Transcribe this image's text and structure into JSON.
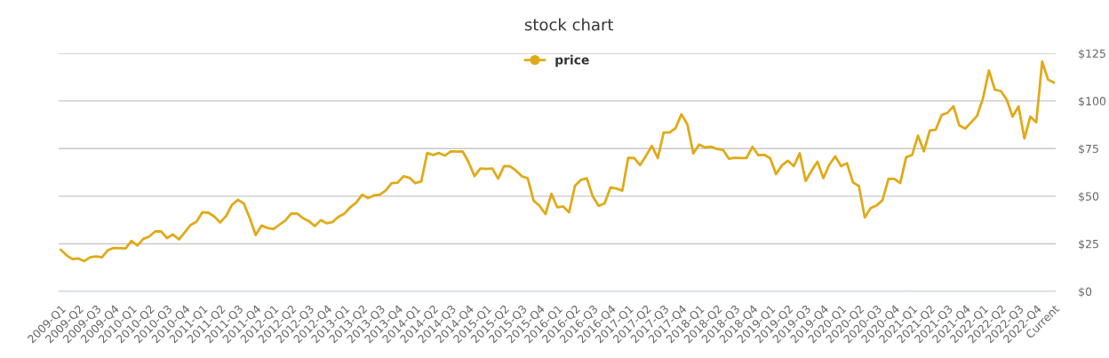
{
  "chart_data": {
    "type": "line",
    "title": "stock chart",
    "categories": [
      "2009-Q1",
      null,
      null,
      "2009-Q2",
      null,
      null,
      "2009-Q3",
      null,
      null,
      "2009-Q4",
      null,
      null,
      "2010-Q1",
      null,
      null,
      "2010-Q2",
      null,
      null,
      "2010-Q3",
      null,
      null,
      "2010-Q4",
      null,
      null,
      "2011-Q1",
      null,
      null,
      "2011-Q2",
      null,
      null,
      "2011-Q3",
      null,
      null,
      "2011-Q4",
      null,
      null,
      "2012-Q1",
      null,
      null,
      "2012-Q2",
      null,
      null,
      "2012-Q3",
      null,
      null,
      "2012-Q4",
      null,
      null,
      "2013-Q1",
      null,
      null,
      "2013-Q2",
      null,
      null,
      "2013-Q3",
      null,
      null,
      "2013-Q4",
      null,
      null,
      "2014-Q1",
      null,
      null,
      "2014-Q2",
      null,
      null,
      "2014-Q3",
      null,
      null,
      "2014-Q4",
      null,
      null,
      "2015-Q1",
      null,
      null,
      "2015-Q2",
      null,
      null,
      "2015-Q3",
      null,
      null,
      "2015-Q4",
      null,
      null,
      "2016-Q1",
      null,
      null,
      "2016-Q2",
      null,
      null,
      "2016-Q3",
      null,
      null,
      "2016-Q4",
      null,
      null,
      "2017-Q1",
      null,
      null,
      "2017-Q2",
      null,
      null,
      "2017-Q3",
      null,
      null,
      "2017-Q4",
      null,
      null,
      "2018-Q1",
      null,
      null,
      "2018-Q2",
      null,
      null,
      "2018-Q3",
      null,
      null,
      "2018-Q4",
      null,
      null,
      "2019-Q1",
      null,
      null,
      "2019-Q2",
      null,
      null,
      "2019-Q3",
      null,
      null,
      "2019-Q4",
      null,
      null,
      "2020-Q1",
      null,
      null,
      "2020-Q2",
      null,
      null,
      "2020-Q3",
      null,
      null,
      "2020-Q4",
      null,
      null,
      "2021-Q1",
      null,
      null,
      "2021-Q2",
      null,
      null,
      "2021-Q3",
      null,
      null,
      "2021-Q4",
      null,
      null,
      "2022-Q1",
      null,
      null,
      "2022-Q2",
      null,
      null,
      "2022-Q3",
      null,
      null,
      "2022-Q4",
      null,
      null,
      "Current"
    ],
    "series": [
      {
        "name": "price",
        "color": "#e0aa16",
        "values": [
          22.0,
          19.0,
          17.0,
          17.3,
          15.9,
          17.9,
          18.4,
          17.9,
          21.7,
          22.8,
          22.7,
          22.6,
          26.5,
          24.1,
          27.6,
          28.8,
          31.5,
          31.5,
          28.0,
          29.9,
          27.3,
          31.0,
          34.9,
          36.6,
          41.6,
          41.3,
          39.3,
          36.2,
          39.6,
          45.5,
          48.1,
          46.1,
          38.5,
          29.6,
          34.6,
          33.3,
          32.7,
          35.0,
          37.2,
          40.9,
          40.9,
          38.5,
          36.9,
          34.3,
          37.4,
          35.8,
          36.4,
          39.2,
          40.8,
          44.2,
          46.6,
          50.8,
          49.0,
          50.4,
          50.8,
          53.0,
          56.9,
          57.1,
          60.5,
          59.7,
          56.8,
          57.8,
          72.7,
          71.6,
          72.7,
          71.3,
          73.5,
          73.4,
          73.5,
          67.9,
          60.5,
          64.6,
          64.3,
          64.6,
          59.2,
          65.8,
          65.7,
          63.5,
          60.5,
          59.4,
          47.7,
          44.9,
          40.6,
          51.3,
          44.2,
          44.6,
          41.5,
          55.5,
          58.5,
          59.4,
          49.9,
          44.9,
          46.2,
          54.6,
          54.0,
          52.9,
          70.2,
          70.0,
          66.3,
          71.2,
          76.4,
          70.0,
          83.5,
          83.5,
          85.7,
          93.0,
          87.7,
          72.5,
          77.1,
          75.6,
          76.0,
          74.8,
          74.4,
          69.7,
          70.2,
          70.0,
          70.0,
          75.9,
          71.5,
          71.7,
          70.0,
          61.6,
          66.2,
          68.6,
          65.8,
          72.6,
          58.0,
          63.4,
          68.1,
          59.5,
          66.5,
          70.9,
          65.8,
          67.3,
          57.2,
          55.4,
          38.9,
          43.7,
          45.1,
          47.9,
          59.1,
          59.1,
          56.9,
          70.5,
          71.6,
          81.8,
          73.6,
          84.5,
          84.9,
          92.6,
          93.8,
          97.2,
          87.1,
          85.5,
          88.8,
          92.2,
          101.5,
          116.0,
          105.9,
          105.2,
          100.8,
          91.8,
          97.2,
          80.3,
          91.8,
          88.8,
          120.7,
          111.2,
          109.6
        ]
      }
    ],
    "ylim": [
      0,
      125
    ],
    "yticks": [
      {
        "value": 0,
        "label": "$0"
      },
      {
        "value": 25,
        "label": "$25"
      },
      {
        "value": 50,
        "label": "$50"
      },
      {
        "value": 75,
        "label": "$75"
      },
      {
        "value": 100,
        "label": "$100"
      },
      {
        "value": 125,
        "label": "$125"
      }
    ],
    "grid": "y",
    "legend": "top",
    "marker": "none",
    "line_style": "solid"
  }
}
